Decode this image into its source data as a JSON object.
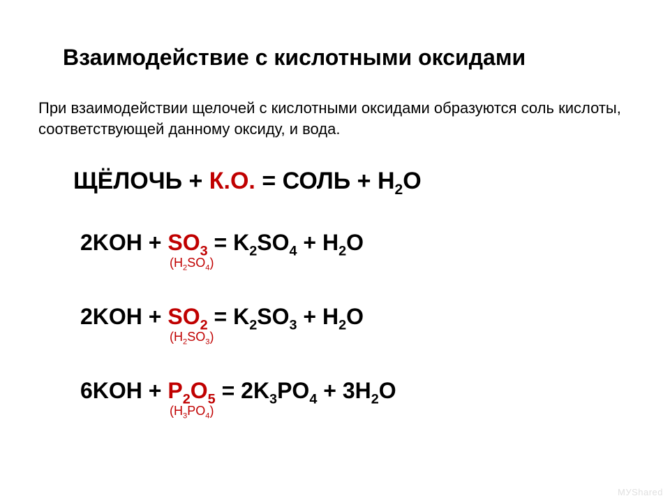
{
  "typography": {
    "title_fontsize": 32,
    "subtitle_fontsize": 22,
    "scheme_fontsize": 34,
    "equation_fontsize": 32,
    "hint_fontsize": 18,
    "font_family": "Arial",
    "title_weight": "bold",
    "equation_weight": "bold"
  },
  "colors": {
    "background": "#ffffff",
    "text": "#000000",
    "oxide_highlight": "#c00000",
    "watermark": "#e0e0e0"
  },
  "title": "Взаимодействие с кислотными оксидами",
  "subtitle": "При взаимодействии щелочей с кислотными оксидами образуются соль кислоты, соответствующей данному оксиду, и вода.",
  "scheme": {
    "lhs": "ЩЁЛОЧЬ + ",
    "oxide": "К.О.",
    "rhs_prefix": " = СОЛЬ + H",
    "rhs_sub": "2",
    "rhs_suffix": "O"
  },
  "equations": [
    {
      "base_coeff": "2",
      "base": "KOH",
      "plus": " + ",
      "oxide_prefix": "SO",
      "oxide_sub": "3",
      "eq": " = ",
      "salt_prefix": "K",
      "salt_sub1": "2",
      "salt_mid": "SO",
      "salt_sub2": "4",
      "water": " + H",
      "water_sub": "2",
      "water_end": "O",
      "hint_prefix": "(H",
      "hint_sub1": "2",
      "hint_mid": "SO",
      "hint_sub2": "4",
      "hint_end": ")"
    },
    {
      "base_coeff": "2",
      "base": "KOH",
      "plus": " + ",
      "oxide_prefix": "SO",
      "oxide_sub": "2",
      "eq": " = ",
      "salt_prefix": "K",
      "salt_sub1": "2",
      "salt_mid": "SO",
      "salt_sub2": "3",
      "water": " + H",
      "water_sub": "2",
      "water_end": "O",
      "hint_prefix": "(H",
      "hint_sub1": "2",
      "hint_mid": "SO",
      "hint_sub2": "3",
      "hint_end": ")"
    },
    {
      "base_coeff": "6",
      "base": "KOH",
      "plus": " + ",
      "oxide_prefix": "P",
      "oxide_sub": "2",
      "oxide_mid": "O",
      "oxide_sub2": "5",
      "eq": " = ",
      "salt_coeff": "2",
      "salt_prefix": "K",
      "salt_sub1": "3",
      "salt_mid": "PO",
      "salt_sub2": "4",
      "water_coeff": " + 3H",
      "water_sub": "2",
      "water_end": "O",
      "hint_prefix": "(H",
      "hint_sub1": "3",
      "hint_mid": "PO",
      "hint_sub2": "4",
      "hint_end": ")"
    }
  ],
  "watermark": "МУ⁠Share⁠d"
}
